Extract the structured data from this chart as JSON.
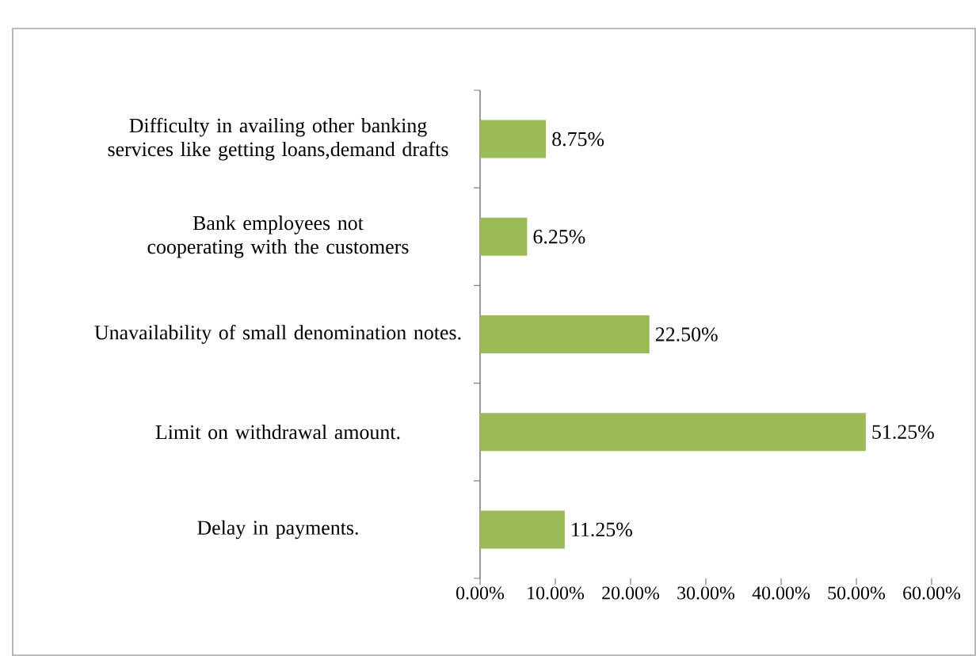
{
  "chart_data": {
    "type": "bar",
    "orientation": "horizontal",
    "categories": [
      "Difficulty in availing other banking services like getting loans,demand drafts",
      "Bank employees not cooperating with the customers",
      "Unavailability of small denomination notes.",
      "Limit on withdrawal amount.",
      "Delay in payments."
    ],
    "values": [
      8.75,
      6.25,
      22.5,
      51.25,
      11.25
    ],
    "value_labels": [
      "8.75%",
      "6.25%",
      "22.50%",
      "51.25%",
      "11.25%"
    ],
    "color": "#9bbb59",
    "xlim": [
      0,
      60
    ],
    "xticks": [
      {
        "value": 0,
        "label": "0.00%"
      },
      {
        "value": 10,
        "label": "10.00%"
      },
      {
        "value": 20,
        "label": "20.00%"
      },
      {
        "value": 30,
        "label": "30.00%"
      },
      {
        "value": 40,
        "label": "40.00%"
      },
      {
        "value": 50,
        "label": "50.00%"
      },
      {
        "value": 60,
        "label": "60.00%"
      }
    ]
  }
}
